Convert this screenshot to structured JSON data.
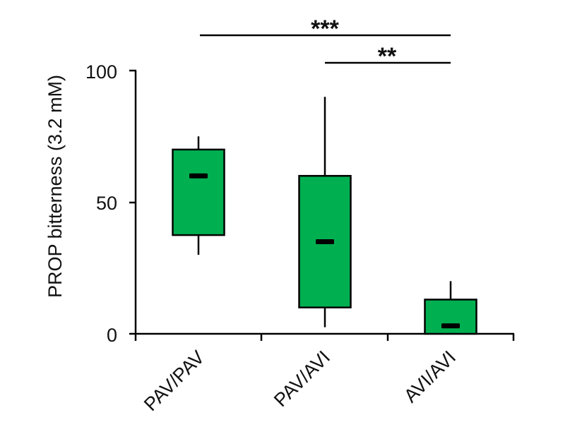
{
  "chart_data": {
    "type": "box",
    "title": "",
    "xlabel": "",
    "ylabel": "PROP  bitterness (3.2 mM)",
    "ylim": [
      0,
      100
    ],
    "yticks": [
      0,
      50,
      100
    ],
    "ytick_labels": [
      "0",
      "50",
      "100"
    ],
    "grid": false,
    "legend": null,
    "categories": [
      "PAV/PAV",
      "PAV/AVI",
      "AVI/AVI"
    ],
    "series": [
      {
        "name": "PROP bitterness",
        "color": "#00B050",
        "boxes": [
          {
            "category": "PAV/PAV",
            "whisker_low": 30,
            "q1": 37.5,
            "median": 60,
            "q3": 70,
            "whisker_high": 75
          },
          {
            "category": "PAV/AVI",
            "whisker_low": 2.5,
            "q1": 10,
            "median": 35,
            "q3": 60,
            "whisker_high": 90
          },
          {
            "category": "AVI/AVI",
            "whisker_low": 0,
            "q1": 0,
            "median": 3,
            "q3": 13,
            "whisker_high": 20
          }
        ]
      }
    ],
    "annotations": [
      {
        "type": "significance",
        "from": "PAV/PAV",
        "to": "AVI/AVI",
        "label": "***"
      },
      {
        "type": "significance",
        "from": "PAV/AVI",
        "to": "AVI/AVI",
        "label": "**"
      }
    ]
  },
  "colors": {
    "box_fill": "#00B050",
    "stroke": "#000000",
    "text": "#111111"
  }
}
